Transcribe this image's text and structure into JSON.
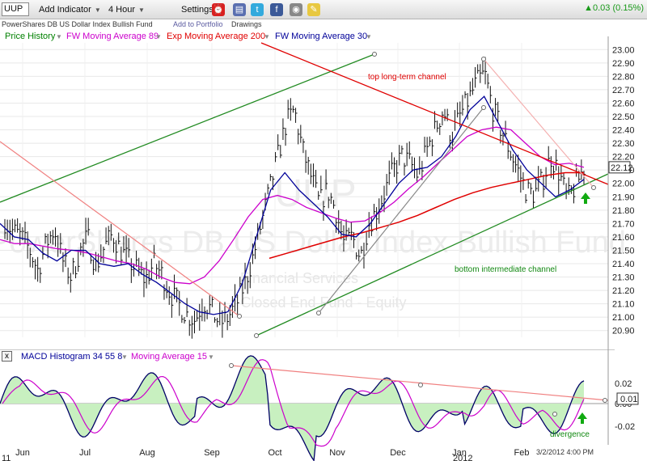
{
  "toolbar": {
    "symbol": "UUP",
    "add_indicator": "Add Indicator",
    "interval": "4 Hour",
    "settings": "Settings",
    "quote": "▲0.03 (0.15%)",
    "icons": [
      "alarm-clock-icon",
      "save-icon",
      "twitter-icon",
      "facebook-icon",
      "camera-icon",
      "note-icon"
    ]
  },
  "subbar": {
    "fund_name": "PowerShares DB US Dollar Index Bullish Fund",
    "add_to_portfolio": "Add to Portfolio",
    "drawings": "Drawings"
  },
  "legend": [
    {
      "label": "Price History",
      "color": "#008000"
    },
    {
      "label": "FW Moving Average 89",
      "color": "#cc00cc"
    },
    {
      "label": "Exp Moving Average 200",
      "color": "#e00000"
    },
    {
      "label": "FW Moving Average 30",
      "color": "#000099"
    }
  ],
  "macd_legend": [
    {
      "label": "MACD Histogram 34 55 8",
      "color": "#000099"
    },
    {
      "label": "Moving Average 15",
      "color": "#cc00cc"
    }
  ],
  "watermark": {
    "symbol": "UUP",
    "name": "PowerShares DB US Dollar Index Bullish Fund",
    "category": "Financial Services",
    "type": "Closed End Fund - Equity"
  },
  "annotations": {
    "top_channel": "top long-term channel",
    "bottom_channel": "bottom intermediate channel",
    "divergence": "divergence",
    "timestamp": "3/2/2012 4:00 PM"
  },
  "chart_data": {
    "type": "line",
    "title": "",
    "x_ticks": [
      "Jun",
      "Jul",
      "Aug",
      "Sep",
      "Oct",
      "Nov",
      "Dec",
      "Jan",
      "Feb"
    ],
    "x_year_labels": [
      "11",
      "2012"
    ],
    "y_ticks": [
      "23.00",
      "22.90",
      "22.80",
      "22.70",
      "22.60",
      "22.50",
      "22.40",
      "22.30",
      "22.20",
      "22.10",
      "22.00",
      "21.90",
      "21.80",
      "21.70",
      "21.60",
      "21.50",
      "21.40",
      "21.30",
      "21.20",
      "21.10",
      "21.00",
      "20.90"
    ],
    "ylim": [
      20.85,
      23.05
    ],
    "last_price": "22.12",
    "series": [
      {
        "name": "Price History",
        "color": "#000000",
        "values": [
          21.72,
          21.64,
          21.6,
          21.5,
          21.35,
          21.55,
          21.66,
          21.42,
          21.3,
          21.48,
          21.6,
          21.38,
          21.52,
          21.62,
          21.5,
          21.42,
          21.35,
          21.28,
          21.4,
          21.32,
          21.18,
          21.1,
          21.02,
          20.98,
          21.12,
          21.05,
          20.95,
          21.0,
          21.1,
          21.25,
          21.45,
          21.7,
          21.95,
          22.2,
          22.45,
          22.55,
          22.25,
          22.05,
          21.85,
          21.95,
          21.8,
          21.55,
          21.6,
          21.45,
          21.7,
          21.8,
          21.95,
          22.1,
          22.2,
          22.15,
          22.05,
          22.25,
          22.4,
          22.55,
          22.35,
          22.5,
          22.62,
          22.75,
          22.82,
          22.55,
          22.4,
          22.25,
          22.1,
          21.95,
          21.92,
          22.02,
          22.2,
          22.08,
          21.88,
          21.98,
          22.12
        ]
      },
      {
        "name": "FW Moving Average 89",
        "color": "#cc00cc",
        "values": [
          21.58,
          21.55,
          21.55,
          21.53,
          21.51,
          21.5,
          21.48,
          21.45,
          21.42,
          21.4,
          21.36,
          21.3,
          21.26,
          21.25,
          21.3,
          21.42,
          21.58,
          21.75,
          21.88,
          21.91,
          21.88,
          21.82,
          21.78,
          21.74,
          21.71,
          21.72,
          21.78,
          21.86,
          21.96,
          22.05,
          22.15,
          22.25,
          22.35,
          22.4,
          22.42,
          22.4,
          22.3,
          22.2,
          22.14,
          22.15,
          22.12
        ]
      },
      {
        "name": "Exp Moving Average 200",
        "color": "#e00000",
        "values": [
          21.44,
          21.48,
          21.52,
          21.56,
          21.6,
          21.63,
          21.67,
          21.71,
          21.76,
          21.82,
          21.88,
          21.93,
          21.97,
          22.0,
          22.03,
          22.06,
          22.08,
          22.08
        ]
      },
      {
        "name": "FW Moving Average 30",
        "color": "#000099",
        "values": [
          21.7,
          21.6,
          21.58,
          21.48,
          21.42,
          21.5,
          21.5,
          21.4,
          21.38,
          21.4,
          21.32,
          21.26,
          21.18,
          21.1,
          21.04,
          21.02,
          21.04,
          21.25,
          21.6,
          21.95,
          22.08,
          21.95,
          21.85,
          21.75,
          21.62,
          21.6,
          21.7,
          21.85,
          22.0,
          22.1,
          22.12,
          22.2,
          22.35,
          22.55,
          22.65,
          22.45,
          22.25,
          22.1,
          22.0,
          21.9,
          21.95,
          22.03
        ]
      }
    ],
    "macd": {
      "yticks": [
        "0.02",
        "0.00",
        "-0.02"
      ],
      "ylim": [
        -0.03,
        0.03
      ],
      "last_value": "0.01"
    }
  }
}
